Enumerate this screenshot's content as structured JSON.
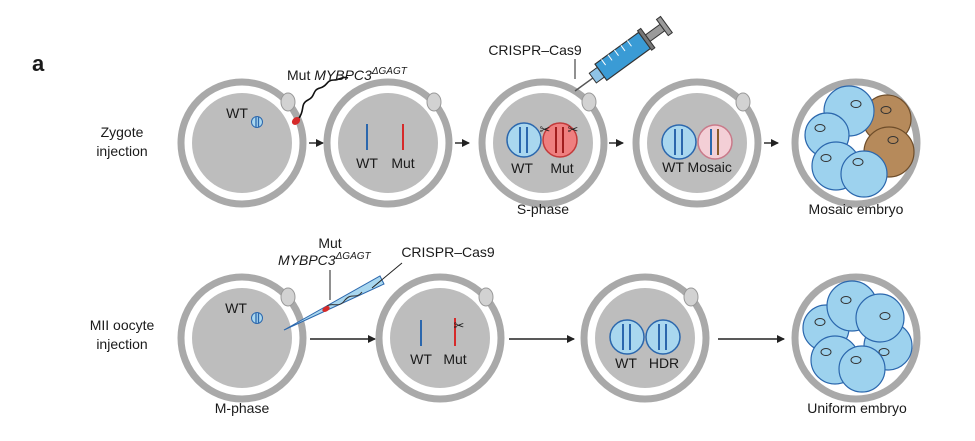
{
  "panel_label": "a",
  "rows": [
    {
      "label_lines": [
        "Zygote",
        "injection"
      ],
      "cells": [
        {
          "labels": [
            "WT"
          ]
        },
        {
          "labels": [
            "WT",
            "Mut"
          ]
        },
        {
          "labels": [
            "WT",
            "Mut"
          ],
          "caption": "S-phase"
        },
        {
          "labels": [
            "WT Mosaic"
          ]
        },
        {
          "caption": "Mosaic embryo"
        }
      ],
      "reagents": {
        "sperm_label_prefix": "Mut ",
        "gene": "MYBPC3",
        "allele": "ΔGAGT",
        "crispr": "CRISPR–Cas9"
      }
    },
    {
      "label_lines": [
        "MII oocyte",
        "injection"
      ],
      "cells": [
        {
          "labels": [
            "WT"
          ],
          "caption": "M-phase"
        },
        {
          "labels": [
            "WT",
            "Mut"
          ]
        },
        {
          "labels": [
            "WT",
            "HDR"
          ]
        },
        {
          "caption": "Uniform embryo"
        }
      ],
      "reagents": {
        "mut_label": "Mut",
        "gene": "MYBPC3",
        "allele": "ΔGAGT",
        "crispr": "CRISPR–Cas9"
      }
    }
  ],
  "colors": {
    "zona": "#a9a9a9",
    "cytoplasm": "#bdbdbd",
    "nucleus_blue": "#a9d7ef",
    "nucleus_red": "#ef7f7f",
    "nucleus_pink": "#f3cfd6",
    "chromosome_blue": "#2b67ad",
    "chromosome_red": "#d62a2a",
    "mosaic_blastomere": "#b68a5b",
    "normal_blastomere": "#9dd2ee",
    "syringe_blue": "#3a9bd5"
  }
}
